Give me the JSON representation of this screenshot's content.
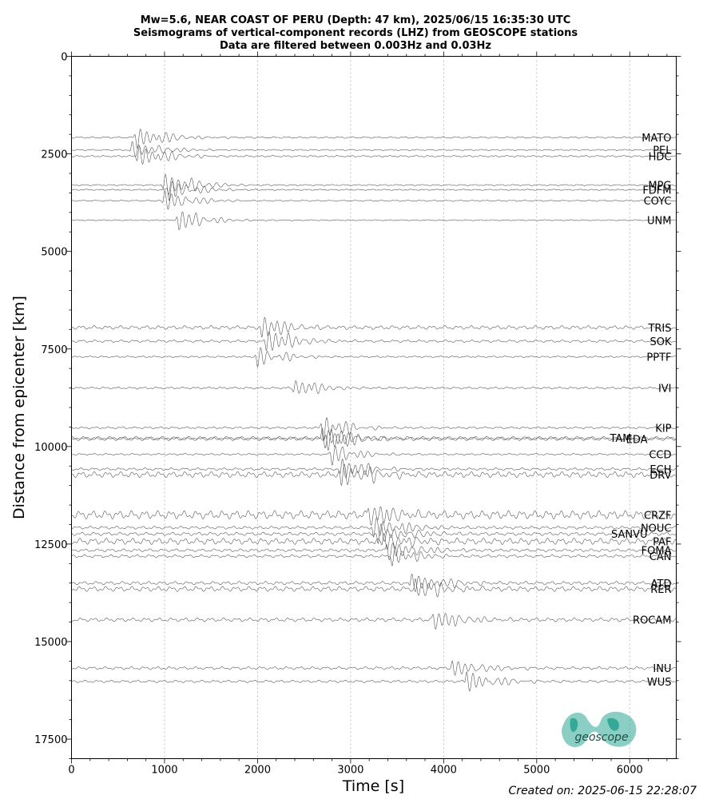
{
  "title": {
    "line1": "Mw=5.6, NEAR COAST OF PERU (Depth: 47 km), 2025/06/15 16:35:30 UTC",
    "line2": "Seismograms of vertical-component records (LHZ) from GEOSCOPE stations",
    "line3": "Data are filtered between 0.003Hz and 0.03Hz"
  },
  "footer": {
    "created": "Created on: 2025-06-15 22:28:07"
  },
  "logo": {
    "text": "geoscope",
    "color": "#2aa594"
  },
  "chart_data": {
    "type": "line",
    "xlabel": "Time [s]",
    "ylabel": "Distance from epicenter [km]",
    "xlim": [
      0,
      6500
    ],
    "ylim": [
      18000,
      0
    ],
    "xticks": [
      0,
      1000,
      2000,
      3000,
      4000,
      5000,
      6000
    ],
    "yticks": [
      0,
      2500,
      5000,
      7500,
      10000,
      12500,
      15000,
      17500
    ],
    "grid": {
      "x": true,
      "y": false,
      "style": "dotted"
    },
    "trace_color": "#555555",
    "stations": [
      {
        "name": "MATO",
        "distance": 2080,
        "arrival": 700,
        "amp": 1.0,
        "noise": 0.08
      },
      {
        "name": "PEL",
        "distance": 2400,
        "arrival": 650,
        "amp": 0.8,
        "noise": 0.06
      },
      {
        "name": "HDC",
        "distance": 2560,
        "arrival": 720,
        "amp": 1.0,
        "noise": 0.08
      },
      {
        "name": "MPG",
        "distance": 3300,
        "arrival": 1000,
        "amp": 1.1,
        "noise": 0.06
      },
      {
        "name": "FDFM",
        "distance": 3420,
        "arrival": 1050,
        "amp": 1.0,
        "noise": 0.06
      },
      {
        "name": "COYC",
        "distance": 3700,
        "arrival": 1000,
        "amp": 1.0,
        "noise": 0.06
      },
      {
        "name": "UNM",
        "distance": 4200,
        "arrival": 1150,
        "amp": 1.0,
        "noise": 0.05
      },
      {
        "name": "TRIS",
        "distance": 6950,
        "arrival": 2050,
        "amp": 1.0,
        "noise": 0.18
      },
      {
        "name": "SOK",
        "distance": 7300,
        "arrival": 2100,
        "amp": 1.1,
        "noise": 0.12
      },
      {
        "name": "PPTF",
        "distance": 7700,
        "arrival": 2000,
        "amp": 1.0,
        "noise": 0.08
      },
      {
        "name": "IVI",
        "distance": 8500,
        "arrival": 2400,
        "amp": 0.8,
        "noise": 0.1
      },
      {
        "name": "KIP",
        "distance": 9520,
        "arrival": 2700,
        "amp": 1.2,
        "noise": 0.1
      },
      {
        "name": "TAM",
        "distance": 9780,
        "arrival": 2700,
        "amp": 1.0,
        "noise": 0.14
      },
      {
        "name": "EDA",
        "distance": 9810,
        "arrival": 2750,
        "amp": 1.1,
        "noise": 0.14
      },
      {
        "name": "CCD",
        "distance": 10200,
        "arrival": 2800,
        "amp": 1.0,
        "noise": 0.08
      },
      {
        "name": "ECH",
        "distance": 10580,
        "arrival": 2900,
        "amp": 1.0,
        "noise": 0.12
      },
      {
        "name": "DRV",
        "distance": 10720,
        "arrival": 2900,
        "amp": 1.1,
        "noise": 0.28
      },
      {
        "name": "CRZF",
        "distance": 11750,
        "arrival": 3200,
        "amp": 1.0,
        "noise": 0.4
      },
      {
        "name": "NOUC",
        "distance": 12080,
        "arrival": 3250,
        "amp": 1.0,
        "noise": 0.14
      },
      {
        "name": "SANVU",
        "distance": 12240,
        "arrival": 3300,
        "amp": 1.0,
        "noise": 0.16
      },
      {
        "name": "PAF",
        "distance": 12430,
        "arrival": 3350,
        "amp": 1.0,
        "noise": 0.3
      },
      {
        "name": "FOMA",
        "distance": 12660,
        "arrival": 3400,
        "amp": 1.0,
        "noise": 0.14
      },
      {
        "name": "CAN",
        "distance": 12810,
        "arrival": 3450,
        "amp": 1.0,
        "noise": 0.14
      },
      {
        "name": "ATD",
        "distance": 13500,
        "arrival": 3650,
        "amp": 1.0,
        "noise": 0.16
      },
      {
        "name": "RER",
        "distance": 13650,
        "arrival": 3700,
        "amp": 1.0,
        "noise": 0.24
      },
      {
        "name": "ROCAM",
        "distance": 14440,
        "arrival": 3900,
        "amp": 1.0,
        "noise": 0.18
      },
      {
        "name": "INU",
        "distance": 15680,
        "arrival": 4100,
        "amp": 0.9,
        "noise": 0.14
      },
      {
        "name": "WUS",
        "distance": 16020,
        "arrival": 4250,
        "amp": 1.0,
        "noise": 0.12
      }
    ]
  }
}
